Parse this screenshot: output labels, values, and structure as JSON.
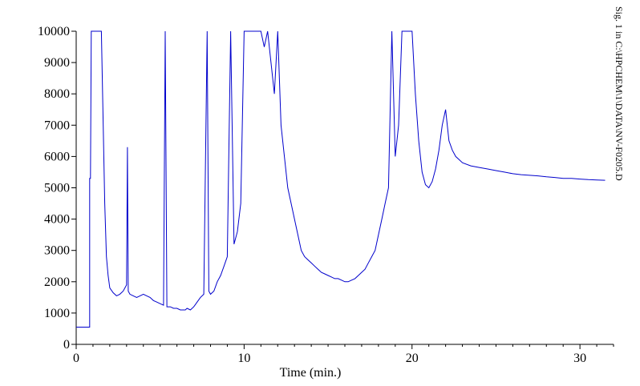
{
  "chart_data": {
    "type": "line",
    "xlabel": "Time (min.)",
    "ylabel": "",
    "xlim": [
      0,
      32
    ],
    "ylim": [
      0,
      10000
    ],
    "x_ticks": [
      0,
      10,
      20,
      30
    ],
    "y_ticks": [
      0,
      1000,
      2000,
      3000,
      4000,
      5000,
      6000,
      7000,
      8000,
      9000,
      10000
    ],
    "grid": false,
    "legend": "none",
    "line_color": "#0000cc",
    "signal_label": "Sig. 1 in C:\\HPCHEM\\1\\DATA\\NV-F0205.D",
    "series": [
      {
        "x": [
          0,
          0.8,
          0.8,
          0.85,
          0.9,
          1.0,
          1.5,
          1.7,
          1.8,
          1.9,
          2.0,
          2.2,
          2.4,
          2.6,
          2.8,
          3.0,
          3.05,
          3.1,
          3.2,
          3.4,
          3.6,
          3.8,
          4.0,
          4.2,
          4.4,
          4.6,
          4.8,
          5.0,
          5.2,
          5.3,
          5.4,
          5.6,
          5.8,
          6.0,
          6.2,
          6.4,
          6.5,
          6.6,
          6.8,
          7.0,
          7.2,
          7.4,
          7.6,
          7.8,
          7.9,
          8.0,
          8.2,
          8.4,
          8.6,
          8.8,
          9.0,
          9.2,
          9.4,
          9.6,
          9.8,
          10.0,
          10.2,
          10.4,
          10.6,
          10.8,
          11.0,
          11.2,
          11.4,
          11.6,
          11.8,
          12.0,
          12.2,
          12.4,
          12.6,
          12.8,
          13.0,
          13.2,
          13.4,
          13.6,
          13.8,
          14.0,
          14.2,
          14.4,
          14.6,
          14.8,
          15.0,
          15.2,
          15.4,
          15.6,
          15.8,
          16.0,
          16.2,
          16.4,
          16.6,
          16.8,
          17.0,
          17.2,
          17.4,
          17.6,
          17.8,
          18.0,
          18.2,
          18.4,
          18.6,
          18.8,
          19.0,
          19.2,
          19.4,
          19.6,
          19.8,
          20.0,
          20.2,
          20.4,
          20.6,
          20.8,
          21.0,
          21.2,
          21.4,
          21.6,
          21.8,
          22.0,
          22.2,
          22.4,
          22.6,
          22.8,
          23.0,
          23.5,
          24.0,
          24.5,
          25.0,
          25.5,
          26.0,
          26.5,
          27.0,
          27.5,
          28.0,
          28.5,
          29.0,
          29.5,
          30.0,
          30.5,
          31.0,
          31.5
        ],
        "y": [
          550,
          550,
          5300,
          5300,
          10000,
          10000,
          10000,
          4500,
          2800,
          2200,
          1800,
          1650,
          1550,
          1600,
          1700,
          1900,
          6300,
          1700,
          1600,
          1550,
          1500,
          1550,
          1600,
          1550,
          1500,
          1400,
          1350,
          1300,
          1250,
          10000,
          1200,
          1200,
          1150,
          1150,
          1100,
          1100,
          1100,
          1150,
          1100,
          1200,
          1350,
          1500,
          1600,
          10000,
          1700,
          1600,
          1700,
          2000,
          2200,
          2500,
          2800,
          10000,
          3200,
          3600,
          4500,
          10000,
          10000,
          10000,
          10000,
          10000,
          10000,
          9500,
          10000,
          9000,
          8000,
          10000,
          7000,
          6000,
          5000,
          4500,
          4000,
          3500,
          3000,
          2800,
          2700,
          2600,
          2500,
          2400,
          2300,
          2250,
          2200,
          2150,
          2100,
          2100,
          2050,
          2000,
          2000,
          2050,
          2100,
          2200,
          2300,
          2400,
          2600,
          2800,
          3000,
          3500,
          4000,
          4500,
          5000,
          10000,
          6000,
          7000,
          10000,
          10000,
          10000,
          10000,
          8000,
          6500,
          5500,
          5100,
          5000,
          5200,
          5600,
          6200,
          7000,
          7500,
          6500,
          6200,
          6000,
          5900,
          5800,
          5700,
          5650,
          5600,
          5550,
          5500,
          5450,
          5420,
          5400,
          5380,
          5350,
          5330,
          5300,
          5300,
          5280,
          5260,
          5250,
          5240
        ]
      }
    ]
  }
}
